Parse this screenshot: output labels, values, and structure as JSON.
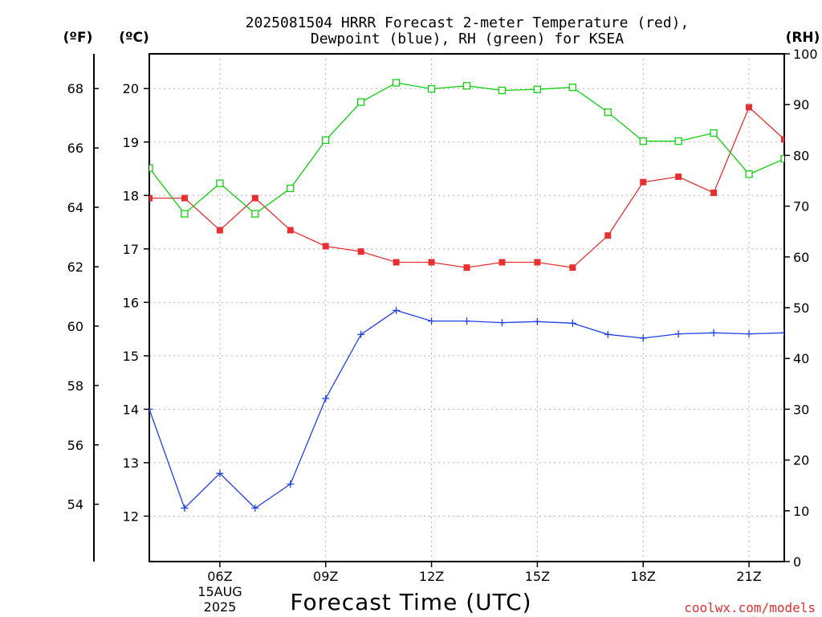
{
  "title_line1": "2025081504 HRRR Forecast 2-meter Temperature (red),",
  "title_line2": "Dewpoint (blue), RH (green) for KSEA",
  "units": {
    "fahrenheit": "(ºF)",
    "celsius": "(ºC)",
    "rh": "(RH)"
  },
  "x_axis_label": "Forecast Time (UTC)",
  "date_label": [
    "15AUG",
    "2025"
  ],
  "credit": "coolwx.com/models",
  "colors": {
    "temperature": "#e83030",
    "dewpoint": "#2040e8",
    "rh": "#10d010",
    "credit": "#e03030"
  },
  "chart_data": {
    "type": "line",
    "x": [
      4,
      5,
      6,
      7,
      8,
      9,
      10,
      11,
      12,
      13,
      14,
      15,
      16,
      17,
      18,
      19,
      20,
      21,
      22
    ],
    "x_unit": "hour UTC",
    "x_ticks": [
      {
        "hour": 6,
        "label": "06Z"
      },
      {
        "hour": 9,
        "label": "09Z"
      },
      {
        "hour": 12,
        "label": "12Z"
      },
      {
        "hour": 15,
        "label": "15Z"
      },
      {
        "hour": 18,
        "label": "18Z"
      },
      {
        "hour": 21,
        "label": "21Z"
      }
    ],
    "celsius_ticks": [
      12,
      13,
      14,
      15,
      16,
      17,
      18,
      19,
      20
    ],
    "fahrenheit_ticks": [
      54,
      56,
      58,
      60,
      62,
      64,
      66,
      68
    ],
    "rh_ticks": [
      0,
      10,
      20,
      30,
      40,
      50,
      60,
      70,
      80,
      90,
      100
    ],
    "celsius_range": [
      11.15,
      20.65
    ],
    "rh_range": [
      0,
      100
    ],
    "grid": true,
    "series": [
      {
        "name": "Temperature",
        "axis": "celsius",
        "marker": "filled-square",
        "values": [
          17.95,
          17.95,
          17.35,
          17.95,
          17.35,
          17.05,
          16.95,
          16.75,
          16.75,
          16.65,
          16.75,
          16.75,
          16.65,
          17.25,
          18.25,
          18.35,
          18.05,
          19.65,
          19.05
        ]
      },
      {
        "name": "Dewpoint",
        "axis": "celsius",
        "marker": "plus",
        "values": [
          14.0,
          12.15,
          12.8,
          12.15,
          12.6,
          14.2,
          15.4,
          15.85,
          15.65,
          15.65,
          15.62,
          15.64,
          15.61,
          15.4,
          15.33,
          15.41,
          15.43,
          15.41,
          15.43
        ]
      },
      {
        "name": "RH",
        "axis": "rh",
        "marker": "open-square",
        "values": [
          77.5,
          68.5,
          74.5,
          68.5,
          73.5,
          83,
          90.5,
          94.3,
          93.1,
          93.7,
          92.8,
          93.0,
          93.4,
          88.5,
          82.8,
          82.8,
          84.4,
          76.3,
          79.3
        ]
      }
    ]
  }
}
